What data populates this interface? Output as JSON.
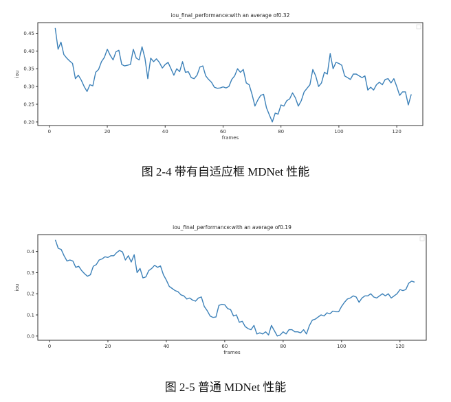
{
  "chart_data": [
    {
      "type": "line",
      "title": "iou_final_performance:with an average of0.32",
      "xlabel": "frames",
      "ylabel": "iou",
      "xlim": [
        -4,
        129
      ],
      "ylim": [
        0.19,
        0.48
      ],
      "xticks": [
        0,
        20,
        40,
        60,
        80,
        100,
        120
      ],
      "yticks": [
        0.2,
        0.25,
        0.3,
        0.35,
        0.4,
        0.45
      ],
      "ytick_labels": [
        "0.20",
        "0.25",
        "0.30",
        "0.35",
        "0.40",
        "0.45"
      ],
      "grid": false,
      "series": [
        {
          "color": "#3b80b8",
          "x": [
            2,
            3,
            4,
            5,
            6,
            7,
            8,
            9,
            10,
            11,
            12,
            13,
            14,
            15,
            16,
            17,
            18,
            19,
            20,
            21,
            22,
            23,
            24,
            25,
            26,
            27,
            28,
            29,
            30,
            31,
            32,
            33,
            34,
            35,
            36,
            37,
            38,
            39,
            40,
            41,
            42,
            43,
            44,
            45,
            46,
            47,
            48,
            49,
            50,
            51,
            52,
            53,
            54,
            55,
            56,
            57,
            58,
            59,
            60,
            61,
            62,
            63,
            64,
            65,
            66,
            67,
            68,
            69,
            70,
            71,
            72,
            73,
            74,
            75,
            76,
            77,
            78,
            79,
            80,
            81,
            82,
            83,
            84,
            85,
            86,
            87,
            88,
            89,
            90,
            91,
            92,
            93,
            94,
            95,
            96,
            97,
            98,
            99,
            100,
            101,
            102,
            103,
            104,
            105,
            106,
            107,
            108,
            109,
            110,
            111,
            112,
            113,
            114,
            115,
            116,
            117,
            118,
            119,
            120,
            121,
            122,
            123,
            124,
            125
          ],
          "y": [
            0.465,
            0.405,
            0.425,
            0.39,
            0.38,
            0.372,
            0.365,
            0.322,
            0.332,
            0.318,
            0.3,
            0.286,
            0.305,
            0.302,
            0.34,
            0.348,
            0.37,
            0.382,
            0.405,
            0.388,
            0.375,
            0.398,
            0.402,
            0.362,
            0.358,
            0.36,
            0.362,
            0.405,
            0.38,
            0.375,
            0.412,
            0.38,
            0.322,
            0.38,
            0.37,
            0.378,
            0.368,
            0.352,
            0.362,
            0.368,
            0.35,
            0.332,
            0.35,
            0.342,
            0.37,
            0.34,
            0.342,
            0.325,
            0.322,
            0.332,
            0.355,
            0.358,
            0.33,
            0.32,
            0.312,
            0.298,
            0.295,
            0.296,
            0.299,
            0.296,
            0.3,
            0.32,
            0.33,
            0.35,
            0.34,
            0.348,
            0.31,
            0.305,
            0.278,
            0.245,
            0.262,
            0.275,
            0.278,
            0.24,
            0.22,
            0.2,
            0.225,
            0.222,
            0.248,
            0.245,
            0.26,
            0.265,
            0.282,
            0.268,
            0.245,
            0.26,
            0.285,
            0.295,
            0.305,
            0.348,
            0.33,
            0.3,
            0.31,
            0.34,
            0.335,
            0.393,
            0.35,
            0.368,
            0.365,
            0.36,
            0.33,
            0.325,
            0.32,
            0.335,
            0.335,
            0.33,
            0.325,
            0.33,
            0.29,
            0.298,
            0.29,
            0.305,
            0.312,
            0.305,
            0.32,
            0.322,
            0.31,
            0.322,
            0.3,
            0.275,
            0.285,
            0.285,
            0.248,
            0.278
          ]
        }
      ]
    },
    {
      "type": "line",
      "title": "iou_final_performance:with an average of0.19",
      "xlabel": "frames",
      "ylabel": "iou",
      "xlim": [
        -4,
        129
      ],
      "ylim": [
        -0.02,
        0.48
      ],
      "xticks": [
        0,
        20,
        40,
        60,
        80,
        100,
        120
      ],
      "yticks": [
        0.0,
        0.1,
        0.2,
        0.3,
        0.4
      ],
      "ytick_labels": [
        "0.0",
        "0.1",
        "0.2",
        "0.3",
        "0.4"
      ],
      "grid": false,
      "series": [
        {
          "color": "#3b80b8",
          "x": [
            2,
            3,
            4,
            5,
            6,
            7,
            8,
            9,
            10,
            11,
            12,
            13,
            14,
            15,
            16,
            17,
            18,
            19,
            20,
            21,
            22,
            23,
            24,
            25,
            26,
            27,
            28,
            29,
            30,
            31,
            32,
            33,
            34,
            35,
            36,
            37,
            38,
            39,
            40,
            41,
            42,
            43,
            44,
            45,
            46,
            47,
            48,
            49,
            50,
            51,
            52,
            53,
            54,
            55,
            56,
            57,
            58,
            59,
            60,
            61,
            62,
            63,
            64,
            65,
            66,
            67,
            68,
            69,
            70,
            71,
            72,
            73,
            74,
            75,
            76,
            77,
            78,
            79,
            80,
            81,
            82,
            83,
            84,
            85,
            86,
            87,
            88,
            89,
            90,
            91,
            92,
            93,
            94,
            95,
            96,
            97,
            98,
            99,
            100,
            101,
            102,
            103,
            104,
            105,
            106,
            107,
            108,
            109,
            110,
            111,
            112,
            113,
            114,
            115,
            116,
            117,
            118,
            119,
            120,
            121,
            122,
            123,
            124,
            125
          ],
          "y": [
            0.455,
            0.415,
            0.41,
            0.38,
            0.355,
            0.36,
            0.355,
            0.325,
            0.33,
            0.31,
            0.295,
            0.283,
            0.29,
            0.33,
            0.338,
            0.36,
            0.365,
            0.375,
            0.372,
            0.38,
            0.38,
            0.395,
            0.405,
            0.398,
            0.36,
            0.38,
            0.35,
            0.385,
            0.3,
            0.32,
            0.275,
            0.28,
            0.31,
            0.32,
            0.335,
            0.325,
            0.332,
            0.29,
            0.265,
            0.235,
            0.225,
            0.215,
            0.21,
            0.195,
            0.19,
            0.175,
            0.18,
            0.17,
            0.165,
            0.18,
            0.185,
            0.14,
            0.12,
            0.095,
            0.088,
            0.09,
            0.145,
            0.15,
            0.148,
            0.13,
            0.125,
            0.095,
            0.1,
            0.065,
            0.07,
            0.045,
            0.035,
            0.03,
            0.05,
            0.01,
            0.015,
            0.01,
            0.02,
            0.005,
            0.05,
            0.025,
            0.0,
            0.005,
            0.02,
            0.01,
            0.03,
            0.03,
            0.02,
            0.02,
            0.015,
            0.03,
            0.01,
            0.05,
            0.075,
            0.08,
            0.09,
            0.1,
            0.095,
            0.11,
            0.105,
            0.118,
            0.115,
            0.115,
            0.14,
            0.16,
            0.175,
            0.18,
            0.19,
            0.185,
            0.16,
            0.18,
            0.19,
            0.19,
            0.2,
            0.185,
            0.18,
            0.19,
            0.2,
            0.19,
            0.2,
            0.18,
            0.19,
            0.2,
            0.22,
            0.215,
            0.22,
            0.25,
            0.26,
            0.255
          ]
        }
      ]
    }
  ],
  "captions": {
    "fig1": "图 2-4 带有自适应框 MDNet 性能",
    "fig2": "图 2-5  普通 MDNet 性能"
  }
}
